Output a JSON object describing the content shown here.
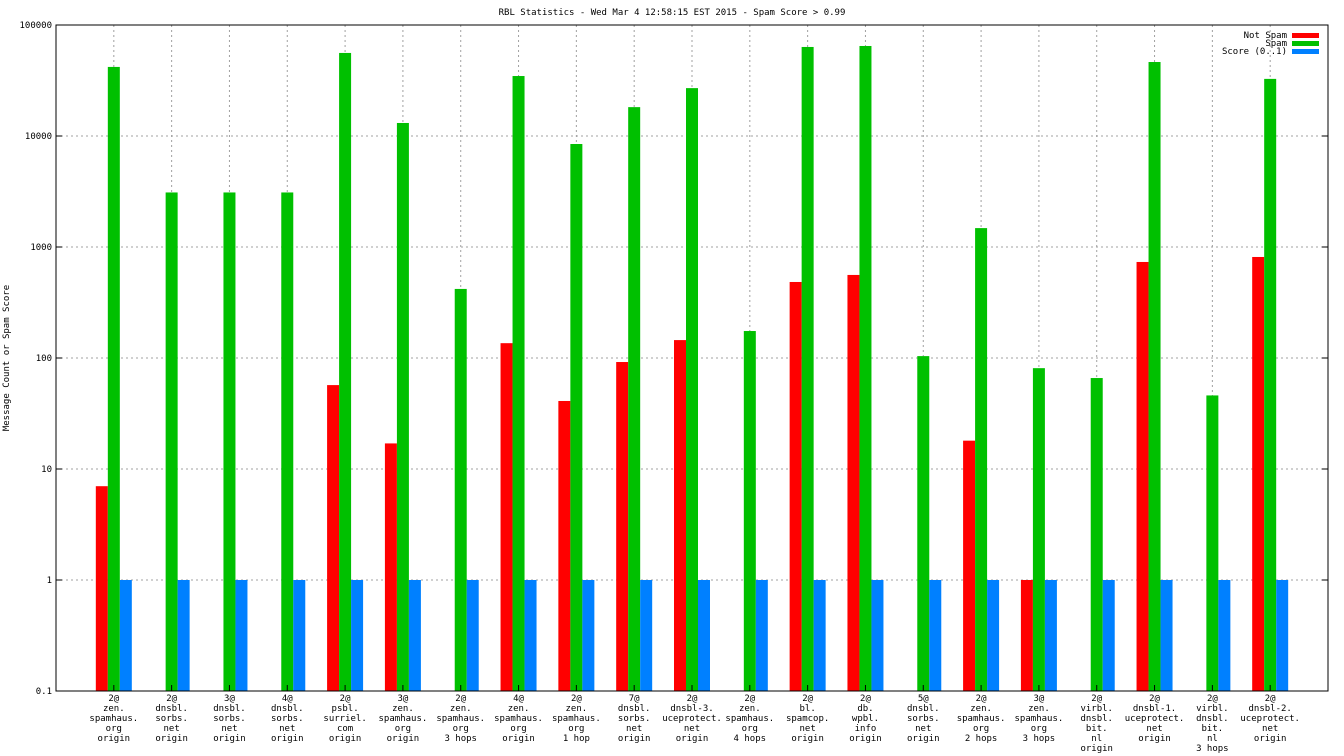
{
  "chart_data": {
    "type": "bar",
    "title": "RBL Statistics - Wed Mar  4 12:58:15 EST 2015 - Spam Score > 0.99",
    "xlabel": "",
    "ylabel": "Message Count or Spam Score",
    "yscale": "log",
    "ylim": [
      0.1,
      100000
    ],
    "yticks": [
      "0.1",
      "1",
      "10",
      "100",
      "1000",
      "10000",
      "100000"
    ],
    "grid": true,
    "legend_position": "top-right",
    "categories": [
      [
        "2@",
        "zen.",
        "spamhaus.",
        "org",
        "origin"
      ],
      [
        "2@",
        "dnsbl.",
        "sorbs.",
        "net",
        "origin"
      ],
      [
        "3@",
        "dnsbl.",
        "sorbs.",
        "net",
        "origin"
      ],
      [
        "4@",
        "dnsbl.",
        "sorbs.",
        "net",
        "origin"
      ],
      [
        "2@",
        "psbl.",
        "surriel.",
        "com",
        "origin"
      ],
      [
        "3@",
        "zen.",
        "spamhaus.",
        "org",
        "origin"
      ],
      [
        "2@",
        "zen.",
        "spamhaus.",
        "org",
        "3 hops"
      ],
      [
        "4@",
        "zen.",
        "spamhaus.",
        "org",
        "origin"
      ],
      [
        "2@",
        "zen.",
        "spamhaus.",
        "org",
        "1 hop"
      ],
      [
        "7@",
        "dnsbl.",
        "sorbs.",
        "net",
        "origin"
      ],
      [
        "2@",
        "dnsbl-3.",
        "uceprotect.",
        "net",
        "origin"
      ],
      [
        "2@",
        "zen.",
        "spamhaus.",
        "org",
        "4 hops"
      ],
      [
        "2@",
        "bl.",
        "spamcop.",
        "net",
        "origin"
      ],
      [
        "2@",
        "db.",
        "wpbl.",
        "info",
        "origin"
      ],
      [
        "5@",
        "dnsbl.",
        "sorbs.",
        "net",
        "origin"
      ],
      [
        "2@",
        "zen.",
        "spamhaus.",
        "org",
        "2 hops"
      ],
      [
        "3@",
        "zen.",
        "spamhaus.",
        "org",
        "3 hops"
      ],
      [
        "2@",
        "virbl.",
        "dnsbl.",
        "bit.",
        "nl",
        "origin"
      ],
      [
        "2@",
        "dnsbl-1.",
        "uceprotect.",
        "net",
        "origin"
      ],
      [
        "2@",
        "virbl.",
        "dnsbl.",
        "bit.",
        "nl",
        "3 hops"
      ],
      [
        "2@",
        "dnsbl-2.",
        "uceprotect.",
        "net",
        "origin"
      ]
    ],
    "series": [
      {
        "name": "Not Spam",
        "color": "#ff0000",
        "values": [
          7,
          null,
          null,
          null,
          57,
          17,
          null,
          136,
          41,
          92,
          145,
          null,
          484,
          560,
          null,
          18,
          1,
          null,
          733,
          null,
          813
        ]
      },
      {
        "name": "Spam",
        "color": "#00c000",
        "values": [
          41900,
          3100,
          3100,
          3100,
          56000,
          13100,
          419,
          34700,
          8470,
          18200,
          27000,
          175,
          63400,
          64700,
          104,
          1480,
          81,
          66,
          46400,
          46,
          32700
        ]
      },
      {
        "name": "Score (0..1)",
        "color": "#0080ff",
        "values": [
          1,
          1,
          1,
          1,
          1,
          1,
          1,
          1,
          1,
          1,
          1,
          1,
          1,
          1,
          1,
          1,
          1,
          1,
          1,
          1,
          1
        ]
      }
    ]
  }
}
